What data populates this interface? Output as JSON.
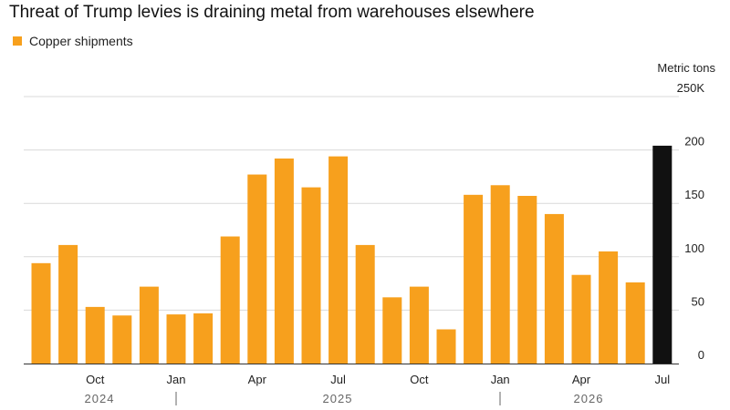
{
  "header": {
    "title": "Threat of Trump levies is draining metal from warehouses elsewhere"
  },
  "legend": {
    "label": "Copper shipments",
    "color": "#F7A01D"
  },
  "colors": {
    "bar": "#F7A01D",
    "highlight_bar": "#111111",
    "grid": "#d9d9d9",
    "axis": "#333333"
  },
  "chart_data": {
    "type": "bar",
    "ylabel": "Metric tons",
    "ylim": [
      0,
      250
    ],
    "y_ticks": [
      {
        "value": 0,
        "label": "0"
      },
      {
        "value": 50,
        "label": "50"
      },
      {
        "value": 100,
        "label": "100"
      },
      {
        "value": 150,
        "label": "150"
      },
      {
        "value": 200,
        "label": "200"
      },
      {
        "value": 250,
        "label": "250K"
      }
    ],
    "grid": true,
    "legend_position": "top-left",
    "x_month_labels": [
      {
        "index": 2,
        "label": "Oct"
      },
      {
        "index": 5,
        "label": "Jan"
      },
      {
        "index": 8,
        "label": "Apr"
      },
      {
        "index": 11,
        "label": "Jul"
      },
      {
        "index": 14,
        "label": "Oct"
      },
      {
        "index": 17,
        "label": "Jan"
      },
      {
        "index": 20,
        "label": "Apr"
      },
      {
        "index": 23,
        "label": "Jul"
      }
    ],
    "x_year_labels": [
      "2024",
      "2025",
      "2026"
    ],
    "series": [
      {
        "name": "Copper shipments",
        "values": [
          94,
          111,
          53,
          45,
          72,
          46,
          47,
          119,
          177,
          192,
          165,
          194,
          111,
          62,
          72,
          32,
          158,
          167,
          157,
          140,
          83,
          105,
          76,
          204
        ],
        "highlight_last": true
      }
    ]
  }
}
